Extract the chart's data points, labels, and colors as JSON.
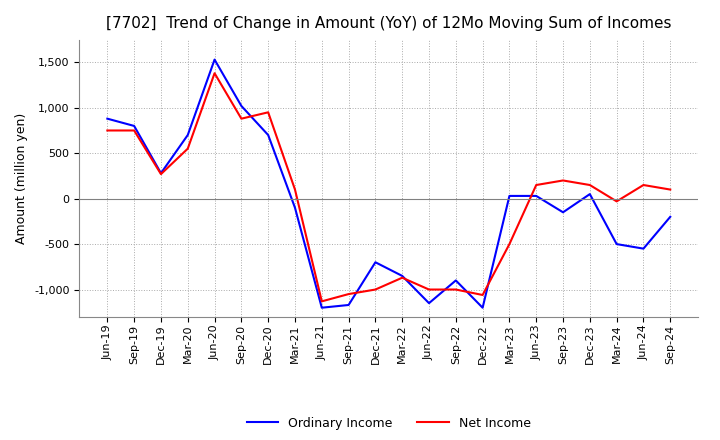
{
  "title": "[7702]  Trend of Change in Amount (YoY) of 12Mo Moving Sum of Incomes",
  "ylabel": "Amount (million yen)",
  "ylim": [
    -1300,
    1750
  ],
  "yticks": [
    -1000,
    -500,
    0,
    500,
    1000,
    1500
  ],
  "background_color": "#ffffff",
  "grid_color": "#aaaaaa",
  "dates": [
    "Jun-19",
    "Sep-19",
    "Dec-19",
    "Mar-20",
    "Jun-20",
    "Sep-20",
    "Dec-20",
    "Mar-21",
    "Jun-21",
    "Sep-21",
    "Dec-21",
    "Mar-22",
    "Jun-22",
    "Sep-22",
    "Dec-22",
    "Mar-23",
    "Jun-23",
    "Sep-23",
    "Dec-23",
    "Mar-24",
    "Jun-24",
    "Sep-24"
  ],
  "ordinary_income": [
    880,
    800,
    280,
    700,
    1530,
    1020,
    700,
    -100,
    -1200,
    -1170,
    -700,
    -850,
    -1150,
    -900,
    -1200,
    30,
    30,
    -150,
    50,
    -500,
    -550,
    -200
  ],
  "net_income": [
    750,
    750,
    270,
    550,
    1380,
    880,
    950,
    100,
    -1130,
    -1050,
    -1000,
    -870,
    -1000,
    -1000,
    -1060,
    -500,
    150,
    200,
    150,
    -30,
    150,
    100
  ],
  "ordinary_color": "#0000ff",
  "net_color": "#ff0000",
  "title_fontsize": 11,
  "label_fontsize": 9,
  "tick_fontsize": 8
}
